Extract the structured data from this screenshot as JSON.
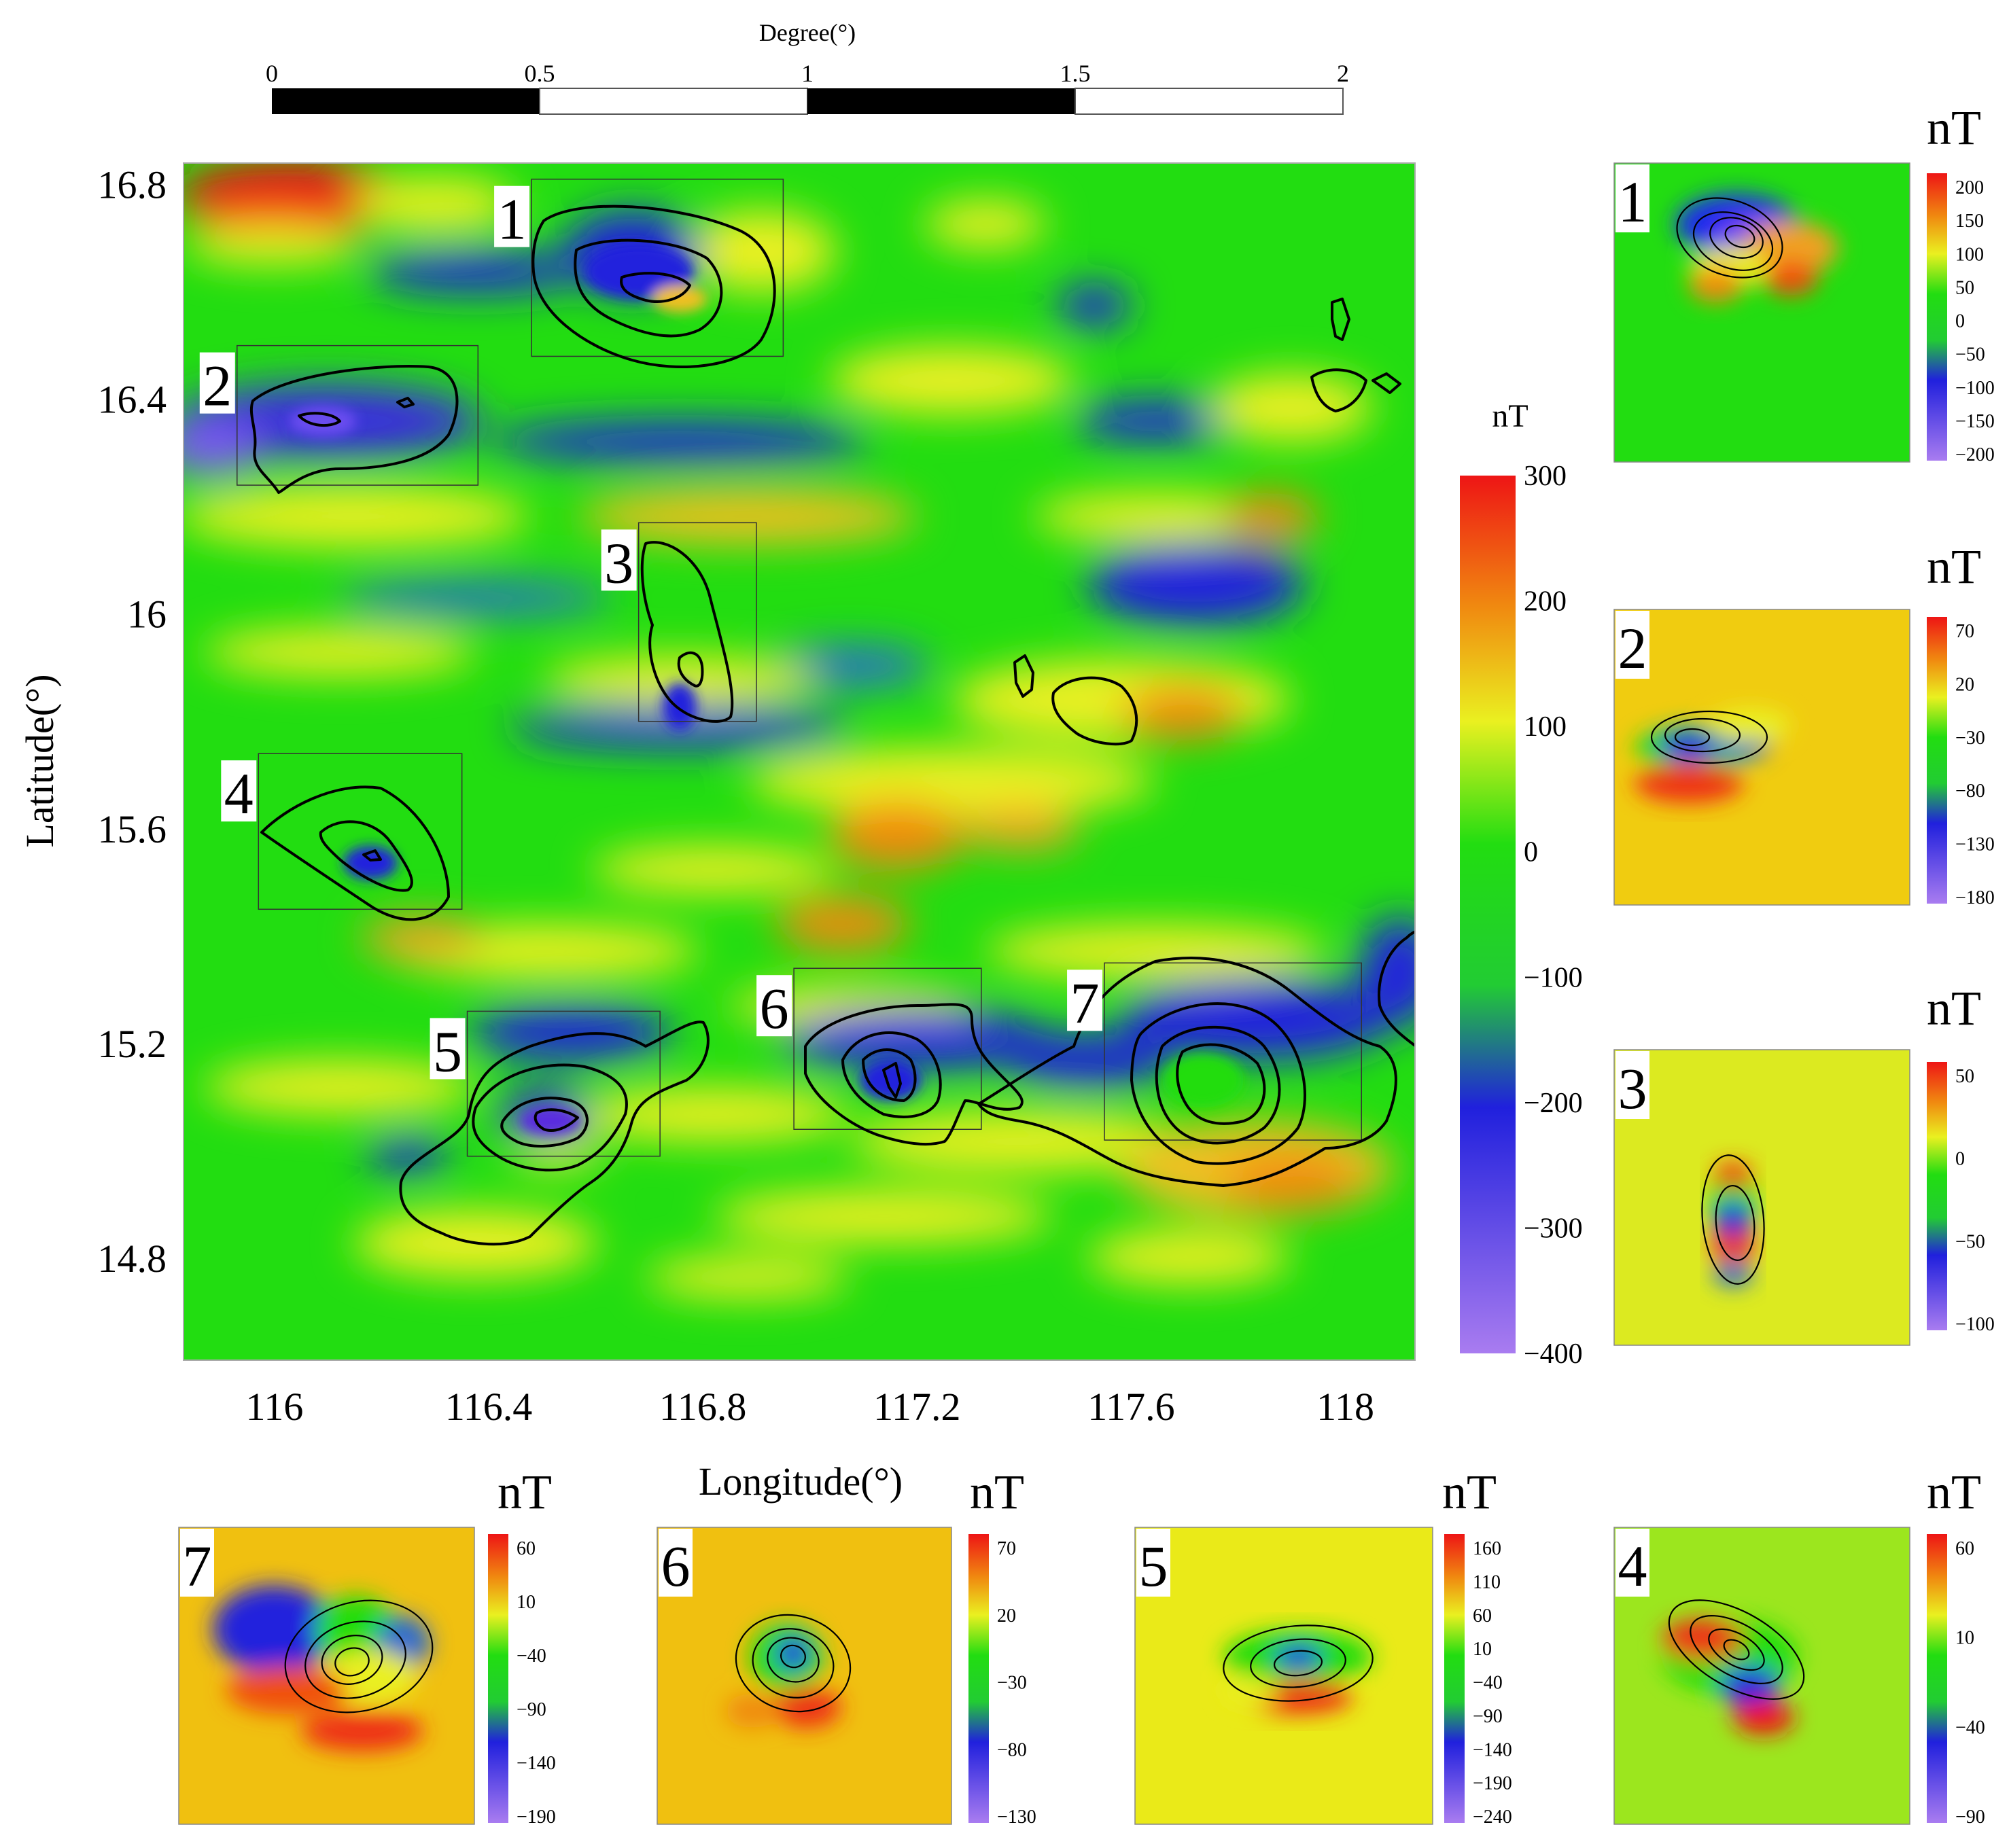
{
  "colors": {
    "violet": "#a97cf0",
    "blue": "#2020dd",
    "green": "#22dd11",
    "yellow": "#eaf020",
    "orange": "#f08a10",
    "red": "#ee1515",
    "contour": "#000000",
    "frame": "#666666"
  },
  "chart_data": [
    {
      "type": "heatmap",
      "xlabel": "Longitude(°)",
      "ylabel": "Latitude(°)",
      "xlim": [
        115.83,
        118.13
      ],
      "ylim": [
        14.61,
        16.84
      ],
      "x_ticks": [
        "116",
        "116.4",
        "116.8",
        "117.2",
        "117.6",
        "118"
      ],
      "y_ticks": [
        "16.8",
        "16.4",
        "16",
        "15.6",
        "15.2",
        "14.8"
      ],
      "scale_bar": {
        "title": "Degree(°)",
        "labels": [
          "0",
          "0.5",
          "1",
          "1.5",
          "2"
        ]
      },
      "colorbar": {
        "unit": "nT",
        "range": [
          -400,
          300
        ],
        "labels": [
          "300",
          "200",
          "100",
          "0",
          "−100",
          "−200",
          "−300",
          "−400"
        ]
      },
      "boxes": [
        {
          "label": "1",
          "lon": [
            116.48,
            116.95
          ],
          "lat": [
            16.48,
            16.81
          ]
        },
        {
          "label": "2",
          "lon": [
            115.93,
            116.38
          ],
          "lat": [
            16.24,
            16.5
          ]
        },
        {
          "label": "3",
          "lon": [
            116.68,
            116.9
          ],
          "lat": [
            15.8,
            16.17
          ]
        },
        {
          "label": "4",
          "lon": [
            115.97,
            116.35
          ],
          "lat": [
            15.45,
            15.74
          ]
        },
        {
          "label": "5",
          "lon": [
            116.36,
            116.72
          ],
          "lat": [
            14.99,
            15.26
          ]
        },
        {
          "label": "6",
          "lon": [
            116.97,
            117.32
          ],
          "lat": [
            15.04,
            15.34
          ]
        },
        {
          "label": "7",
          "lon": [
            117.55,
            118.03
          ],
          "lat": [
            15.02,
            15.35
          ]
        }
      ]
    },
    {
      "type": "heatmap",
      "panel": "1",
      "colorbar": {
        "unit": "nT",
        "labels": [
          "200",
          "150",
          "100",
          "50",
          "0",
          "−50",
          "−100",
          "−150",
          "−200"
        ]
      }
    },
    {
      "type": "heatmap",
      "panel": "2",
      "colorbar": {
        "unit": "nT",
        "labels": [
          "70",
          "20",
          "−30",
          "−80",
          "−130",
          "−180"
        ]
      }
    },
    {
      "type": "heatmap",
      "panel": "3",
      "colorbar": {
        "unit": "nT",
        "labels": [
          "50",
          "0",
          "−50",
          "−100"
        ]
      }
    },
    {
      "type": "heatmap",
      "panel": "7",
      "colorbar": {
        "unit": "nT",
        "labels": [
          "60",
          "10",
          "−40",
          "−90",
          "−140",
          "−190"
        ]
      }
    },
    {
      "type": "heatmap",
      "panel": "6",
      "colorbar": {
        "unit": "nT",
        "labels": [
          "70",
          "20",
          "−30",
          "−80",
          "−130"
        ]
      }
    },
    {
      "type": "heatmap",
      "panel": "5",
      "colorbar": {
        "unit": "nT",
        "labels": [
          "160",
          "110",
          "60",
          "10",
          "−40",
          "−90",
          "−140",
          "−190",
          "−240"
        ]
      }
    },
    {
      "type": "heatmap",
      "panel": "4",
      "colorbar": {
        "unit": "nT",
        "labels": [
          "60",
          "10",
          "−40",
          "−90"
        ]
      }
    }
  ]
}
